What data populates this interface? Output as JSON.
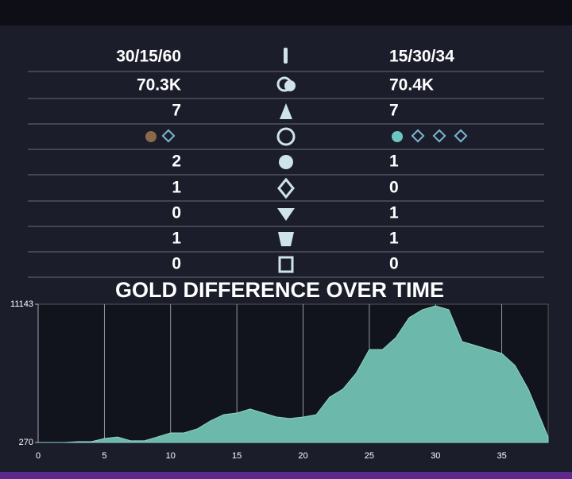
{
  "stats": {
    "rows": [
      {
        "left": "30/15/60",
        "right": "15/30/34"
      },
      {
        "left": "70.3K",
        "right": "70.4K"
      },
      {
        "left": "7",
        "right": "7"
      },
      {
        "left": "2",
        "right": "1"
      },
      {
        "left": "1",
        "right": "0"
      },
      {
        "left": "0",
        "right": "1"
      },
      {
        "left": "1",
        "right": "1"
      },
      {
        "left": "0",
        "right": "0"
      }
    ]
  },
  "chart_data": {
    "type": "area",
    "title": "GOLD DIFFERENCE OVER TIME",
    "color": "#6cb8ab",
    "x": [
      0,
      1,
      2,
      3,
      4,
      5,
      6,
      7,
      8,
      9,
      10,
      11,
      12,
      13,
      14,
      15,
      16,
      17,
      18,
      19,
      20,
      21,
      22,
      23,
      24,
      25,
      26,
      27,
      28,
      29,
      30,
      31,
      32,
      33,
      34,
      35,
      36,
      37,
      38,
      38.5
    ],
    "values": [
      270,
      270,
      270,
      330,
      330,
      580,
      700,
      400,
      400,
      700,
      1020,
      1020,
      1330,
      1960,
      2460,
      2580,
      2900,
      2580,
      2270,
      2150,
      2270,
      2460,
      3830,
      4460,
      5710,
      7580,
      7580,
      8520,
      10080,
      10710,
      11020,
      10710,
      8210,
      7900,
      7580,
      7270,
      6330,
      4460,
      1960,
      700
    ],
    "xlim": [
      0,
      38.5
    ],
    "xticks": [
      0,
      5,
      10,
      15,
      20,
      25,
      30,
      35
    ],
    "ylim": [
      270,
      11143
    ],
    "yticks": [
      270,
      11143
    ],
    "grid": true
  }
}
